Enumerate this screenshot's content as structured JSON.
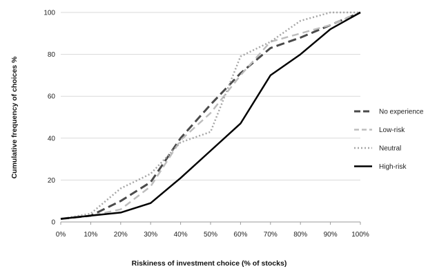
{
  "chart_data": {
    "type": "line",
    "title": "",
    "xlabel": "Riskiness of investment choice (% of stocks)",
    "ylabel": "Cumulative frequency of choices  %",
    "categories": [
      "0%",
      "10%",
      "20%",
      "30%",
      "40%",
      "50%",
      "60%",
      "70%",
      "80%",
      "90%",
      "100%"
    ],
    "ylim": [
      0,
      100
    ],
    "yticks": [
      "0",
      "20",
      "40",
      "60",
      "80",
      "100"
    ],
    "grid": "horizontal",
    "legend_position": "right",
    "series": [
      {
        "name": "No experience",
        "values": [
          1.5,
          3,
          10,
          19,
          40,
          56,
          71,
          83,
          88,
          94,
          100
        ],
        "color": "#4a4a4a",
        "dash": "12,6",
        "width": 3
      },
      {
        "name": "Low-risk",
        "values": [
          1.5,
          3,
          6,
          17,
          39,
          52,
          70,
          86,
          90,
          94,
          100
        ],
        "color": "#bdbdbd",
        "dash": "10,6",
        "width": 2.5
      },
      {
        "name": "Neutral",
        "values": [
          1.5,
          4,
          16,
          23,
          38,
          43,
          79,
          86,
          96,
          100,
          100
        ],
        "color": "#a6a6a6",
        "dash": "2,3",
        "width": 2.5
      },
      {
        "name": "High-risk",
        "values": [
          1.5,
          3,
          4.5,
          9,
          21,
          34,
          47,
          70,
          80,
          92,
          100
        ],
        "color": "#000000",
        "dash": "",
        "width": 2.5
      }
    ]
  }
}
